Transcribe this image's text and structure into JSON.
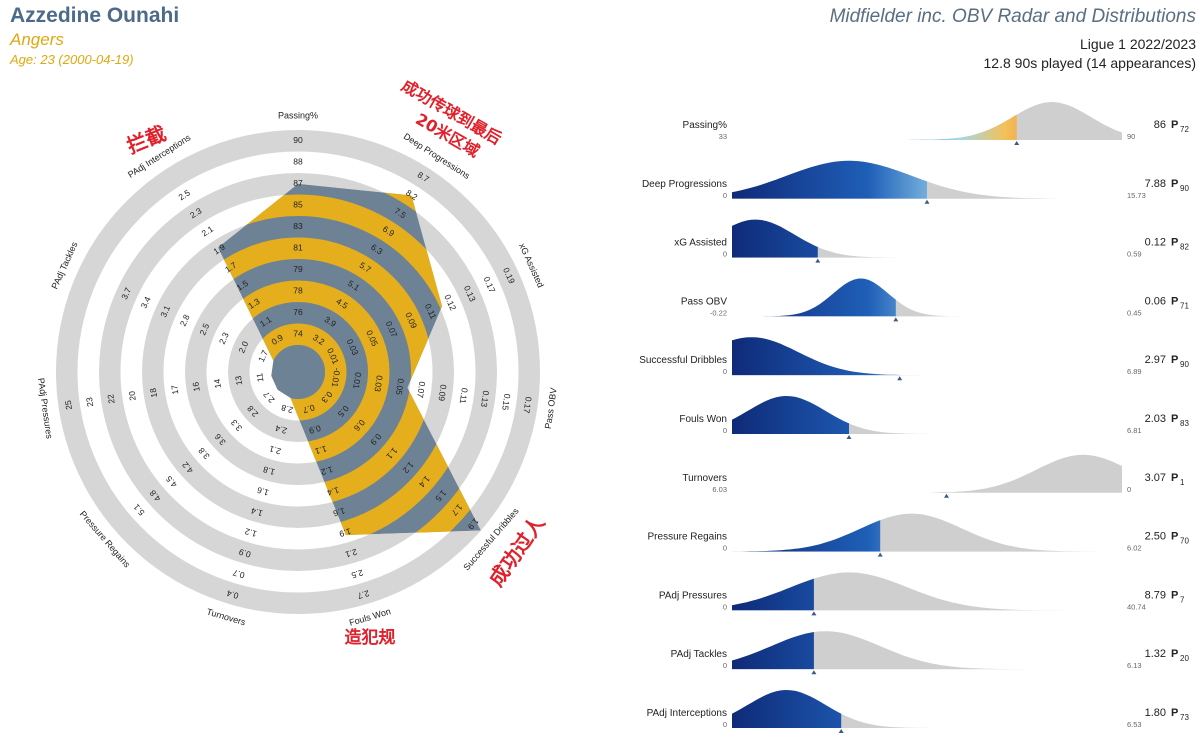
{
  "header": {
    "player_name": "Azzedine Ounahi",
    "team": "Angers",
    "age_line": "Age: 23 (2000-04-19)",
    "title": "Midfielder inc. OBV Radar and Distributions",
    "competition": "Ligue 1 2022/2023",
    "played": "12.8 90s played (14 appearances)"
  },
  "annotations": {
    "interceptions": "拦截",
    "deep_progressions": [
      "成功传球到最后",
      "20米区域"
    ],
    "dribbles": "成功过人",
    "fouls_won": "造犯规"
  },
  "colors": {
    "radar_gold": "#e5ae1c",
    "radar_slate": "#6e8296",
    "ring_gray": "#d6d6d6",
    "accent_red": "#e0202a",
    "dist_gray": "#cfcfcf",
    "dist_navy": "#0f2a78"
  },
  "chart_data": [
    {
      "type": "radar",
      "axes": [
        {
          "label": "Passing%",
          "ticks": [
            "74",
            "76",
            "78",
            "79",
            "81",
            "83",
            "85",
            "87",
            "88",
            "90"
          ],
          "value": 86
        },
        {
          "label": "Deep Progressions",
          "ticks": [
            "3.2",
            "3.9",
            "4.5",
            "5.1",
            "5.7",
            "6.3",
            "6.9",
            "7.5",
            "8.2",
            "8.7"
          ],
          "value": 7.88
        },
        {
          "label": "xG Assisted",
          "ticks": [
            "0.01",
            "0.03",
            "0.05",
            "0.07",
            "0.09",
            "0.11",
            "0.12",
            "0.13",
            "0.17",
            "0.19"
          ],
          "value": 0.12
        },
        {
          "label": "Pass OBV",
          "ticks": [
            "-0.01",
            "0.01",
            "0.03",
            "0.05",
            "0.07",
            "0.09",
            "0.11",
            "0.13",
            "0.15",
            "0.17"
          ],
          "value": 0.06
        },
        {
          "label": "Successful Dribbles",
          "ticks": [
            "0.3",
            "0.5",
            "0.6",
            "0.9",
            "1.1",
            "1.2",
            "1.4",
            "1.5",
            "1.7",
            "1.9"
          ],
          "value": 2.97
        },
        {
          "label": "Fouls Won",
          "ticks": [
            "0.7",
            "0.9",
            "1.1",
            "1.2",
            "1.4",
            "1.6",
            "1.9",
            "2.1",
            "2.5",
            "2.7"
          ],
          "value": 2.03
        },
        {
          "label": "Turnovers",
          "ticks": [
            "2.8",
            "2.4",
            "2.1",
            "1.8",
            "1.6",
            "1.4",
            "1.2",
            "0.9",
            "0.7",
            "0.4"
          ],
          "value": 3.07
        },
        {
          "label": "Pressure Regains",
          "ticks": [
            "2.7",
            "2.8",
            "3.3",
            "3.6",
            "3.8",
            "4.2",
            "4.5",
            "4.8",
            "5.1",
            ""
          ],
          "value": 2.5
        },
        {
          "label": "PAdj Pressures",
          "ticks": [
            "11",
            "13",
            "14",
            "16",
            "17",
            "18",
            "20",
            "22",
            "23",
            "25"
          ],
          "value": 8.79
        },
        {
          "label": "PAdj Tackles",
          "ticks": [
            "1.7",
            "2.0",
            "2.3",
            "2.5",
            "2.8",
            "3.1",
            "3.4",
            "3.7",
            "",
            ""
          ],
          "value": 1.32
        },
        {
          "label": "PAdj Interceptions",
          "ticks": [
            "0.9",
            "1.1",
            "1.3",
            "1.5",
            "1.7",
            "1.9",
            "2.1",
            "2.3",
            "2.5",
            ""
          ],
          "value": 1.8
        }
      ]
    },
    {
      "type": "area",
      "subtype": "distributions",
      "rows": [
        {
          "label": "Passing%",
          "min": "33",
          "max": "90",
          "value": "86",
          "percentile": "72",
          "fill": 0.73,
          "peak": 0.82,
          "spread": 0.1
        },
        {
          "label": "Deep Progressions",
          "min": "0",
          "max": "15.73",
          "value": "7.88",
          "percentile": "90",
          "fill": 0.5,
          "peak": 0.3,
          "spread": 0.16
        },
        {
          "label": "xG Assisted",
          "min": "0",
          "max": "0.59",
          "value": "0.12",
          "percentile": "82",
          "fill": 0.22,
          "peak": 0.06,
          "spread": 0.1
        },
        {
          "label": "Pass OBV",
          "min": "-0.22",
          "max": "0.45",
          "value": "0.06",
          "percentile": "71",
          "fill": 0.42,
          "peak": 0.33,
          "spread": 0.07
        },
        {
          "label": "Successful Dribbles",
          "min": "0",
          "max": "6.89",
          "value": "2.97",
          "percentile": "90",
          "fill": 0.43,
          "peak": 0.05,
          "spread": 0.12
        },
        {
          "label": "Fouls Won",
          "min": "0",
          "max": "6.81",
          "value": "2.03",
          "percentile": "83",
          "fill": 0.3,
          "peak": 0.14,
          "spread": 0.1
        },
        {
          "label": "Turnovers",
          "min": "6.03",
          "max": "0",
          "value": "3.07",
          "percentile": "1",
          "fill": 0.55,
          "peak": 0.9,
          "spread": 0.12
        },
        {
          "label": "Pressure Regains",
          "min": "0",
          "max": "6.02",
          "value": "2.50",
          "percentile": "70",
          "fill": 0.38,
          "peak": 0.46,
          "spread": 0.13
        },
        {
          "label": "PAdj Pressures",
          "min": "0",
          "max": "40.74",
          "value": "8.79",
          "percentile": "7",
          "fill": 0.21,
          "peak": 0.3,
          "spread": 0.15
        },
        {
          "label": "PAdj Tackles",
          "min": "0",
          "max": "6.13",
          "value": "1.32",
          "percentile": "20",
          "fill": 0.21,
          "peak": 0.24,
          "spread": 0.14
        },
        {
          "label": "PAdj Interceptions",
          "min": "0",
          "max": "6.53",
          "value": "1.80",
          "percentile": "73",
          "fill": 0.28,
          "peak": 0.14,
          "spread": 0.1
        }
      ]
    }
  ]
}
